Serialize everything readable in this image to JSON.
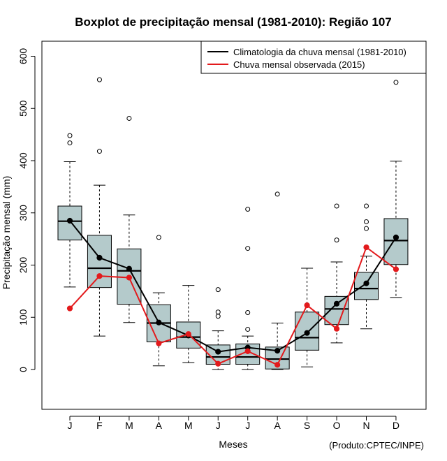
{
  "chart_data": {
    "type": "boxplot",
    "title": "Boxplot de precipitação mensal (1981-2010): Região 107",
    "xlabel": "Meses",
    "ylabel": "Precipitação mensal (mm)",
    "ylim": [
      -75,
      630
    ],
    "yticks": [
      0,
      100,
      200,
      300,
      400,
      500,
      600
    ],
    "categories": [
      "J",
      "F",
      "M",
      "A",
      "M",
      "J",
      "J",
      "A",
      "S",
      "O",
      "N",
      "D"
    ],
    "boxes": [
      {
        "whisker_low": 158,
        "q1": 248,
        "median": 284,
        "q3": 313,
        "whisker_high": 398,
        "outliers": [
          434,
          448
        ]
      },
      {
        "whisker_low": 64,
        "q1": 157,
        "median": 194,
        "q3": 257,
        "whisker_high": 353,
        "outliers": [
          418,
          555
        ]
      },
      {
        "whisker_low": 90,
        "q1": 125,
        "median": 189,
        "q3": 231,
        "whisker_high": 296,
        "outliers": [
          481
        ]
      },
      {
        "whisker_low": 7,
        "q1": 53,
        "median": 89,
        "q3": 124,
        "whisker_high": 147,
        "outliers": [
          253
        ]
      },
      {
        "whisker_low": 13,
        "q1": 41,
        "median": 62,
        "q3": 91,
        "whisker_high": 161,
        "outliers": []
      },
      {
        "whisker_low": 0,
        "q1": 10,
        "median": 24,
        "q3": 47,
        "whisker_high": 74,
        "outliers": [
          102,
          110,
          153
        ]
      },
      {
        "whisker_low": 0,
        "q1": 10,
        "median": 24,
        "q3": 49,
        "whisker_high": 64,
        "outliers": [
          77,
          109,
          232,
          307
        ]
      },
      {
        "whisker_low": 0,
        "q1": 1,
        "median": 20,
        "q3": 43,
        "whisker_high": 89,
        "outliers": [
          336
        ]
      },
      {
        "whisker_low": 5,
        "q1": 37,
        "median": 61,
        "q3": 110,
        "whisker_high": 194,
        "outliers": []
      },
      {
        "whisker_low": 51,
        "q1": 86,
        "median": 116,
        "q3": 140,
        "whisker_high": 206,
        "outliers": [
          248,
          313
        ]
      },
      {
        "whisker_low": 78,
        "q1": 134,
        "median": 155,
        "q3": 186,
        "whisker_high": 217,
        "outliers": [
          270,
          283,
          313
        ]
      },
      {
        "whisker_low": 138,
        "q1": 201,
        "median": 247,
        "q3": 289,
        "whisker_high": 399,
        "outliers": [
          550
        ]
      }
    ],
    "series": [
      {
        "name": "Climatologia da chuva mensal (1981-2010)",
        "color": "#000000",
        "values": [
          285,
          214,
          193,
          90,
          65,
          34,
          42,
          36,
          70,
          126,
          165,
          253
        ]
      },
      {
        "name": "Chuva mensal observada (2015)",
        "color": "#e31a1c",
        "values": [
          117,
          179,
          176,
          50,
          68,
          11,
          35,
          9,
          123,
          78,
          234,
          192
        ]
      }
    ],
    "legend_position": "top-right",
    "box_fill": "#b4cacb",
    "credit": "(Produto:CPTEC/INPE)"
  }
}
